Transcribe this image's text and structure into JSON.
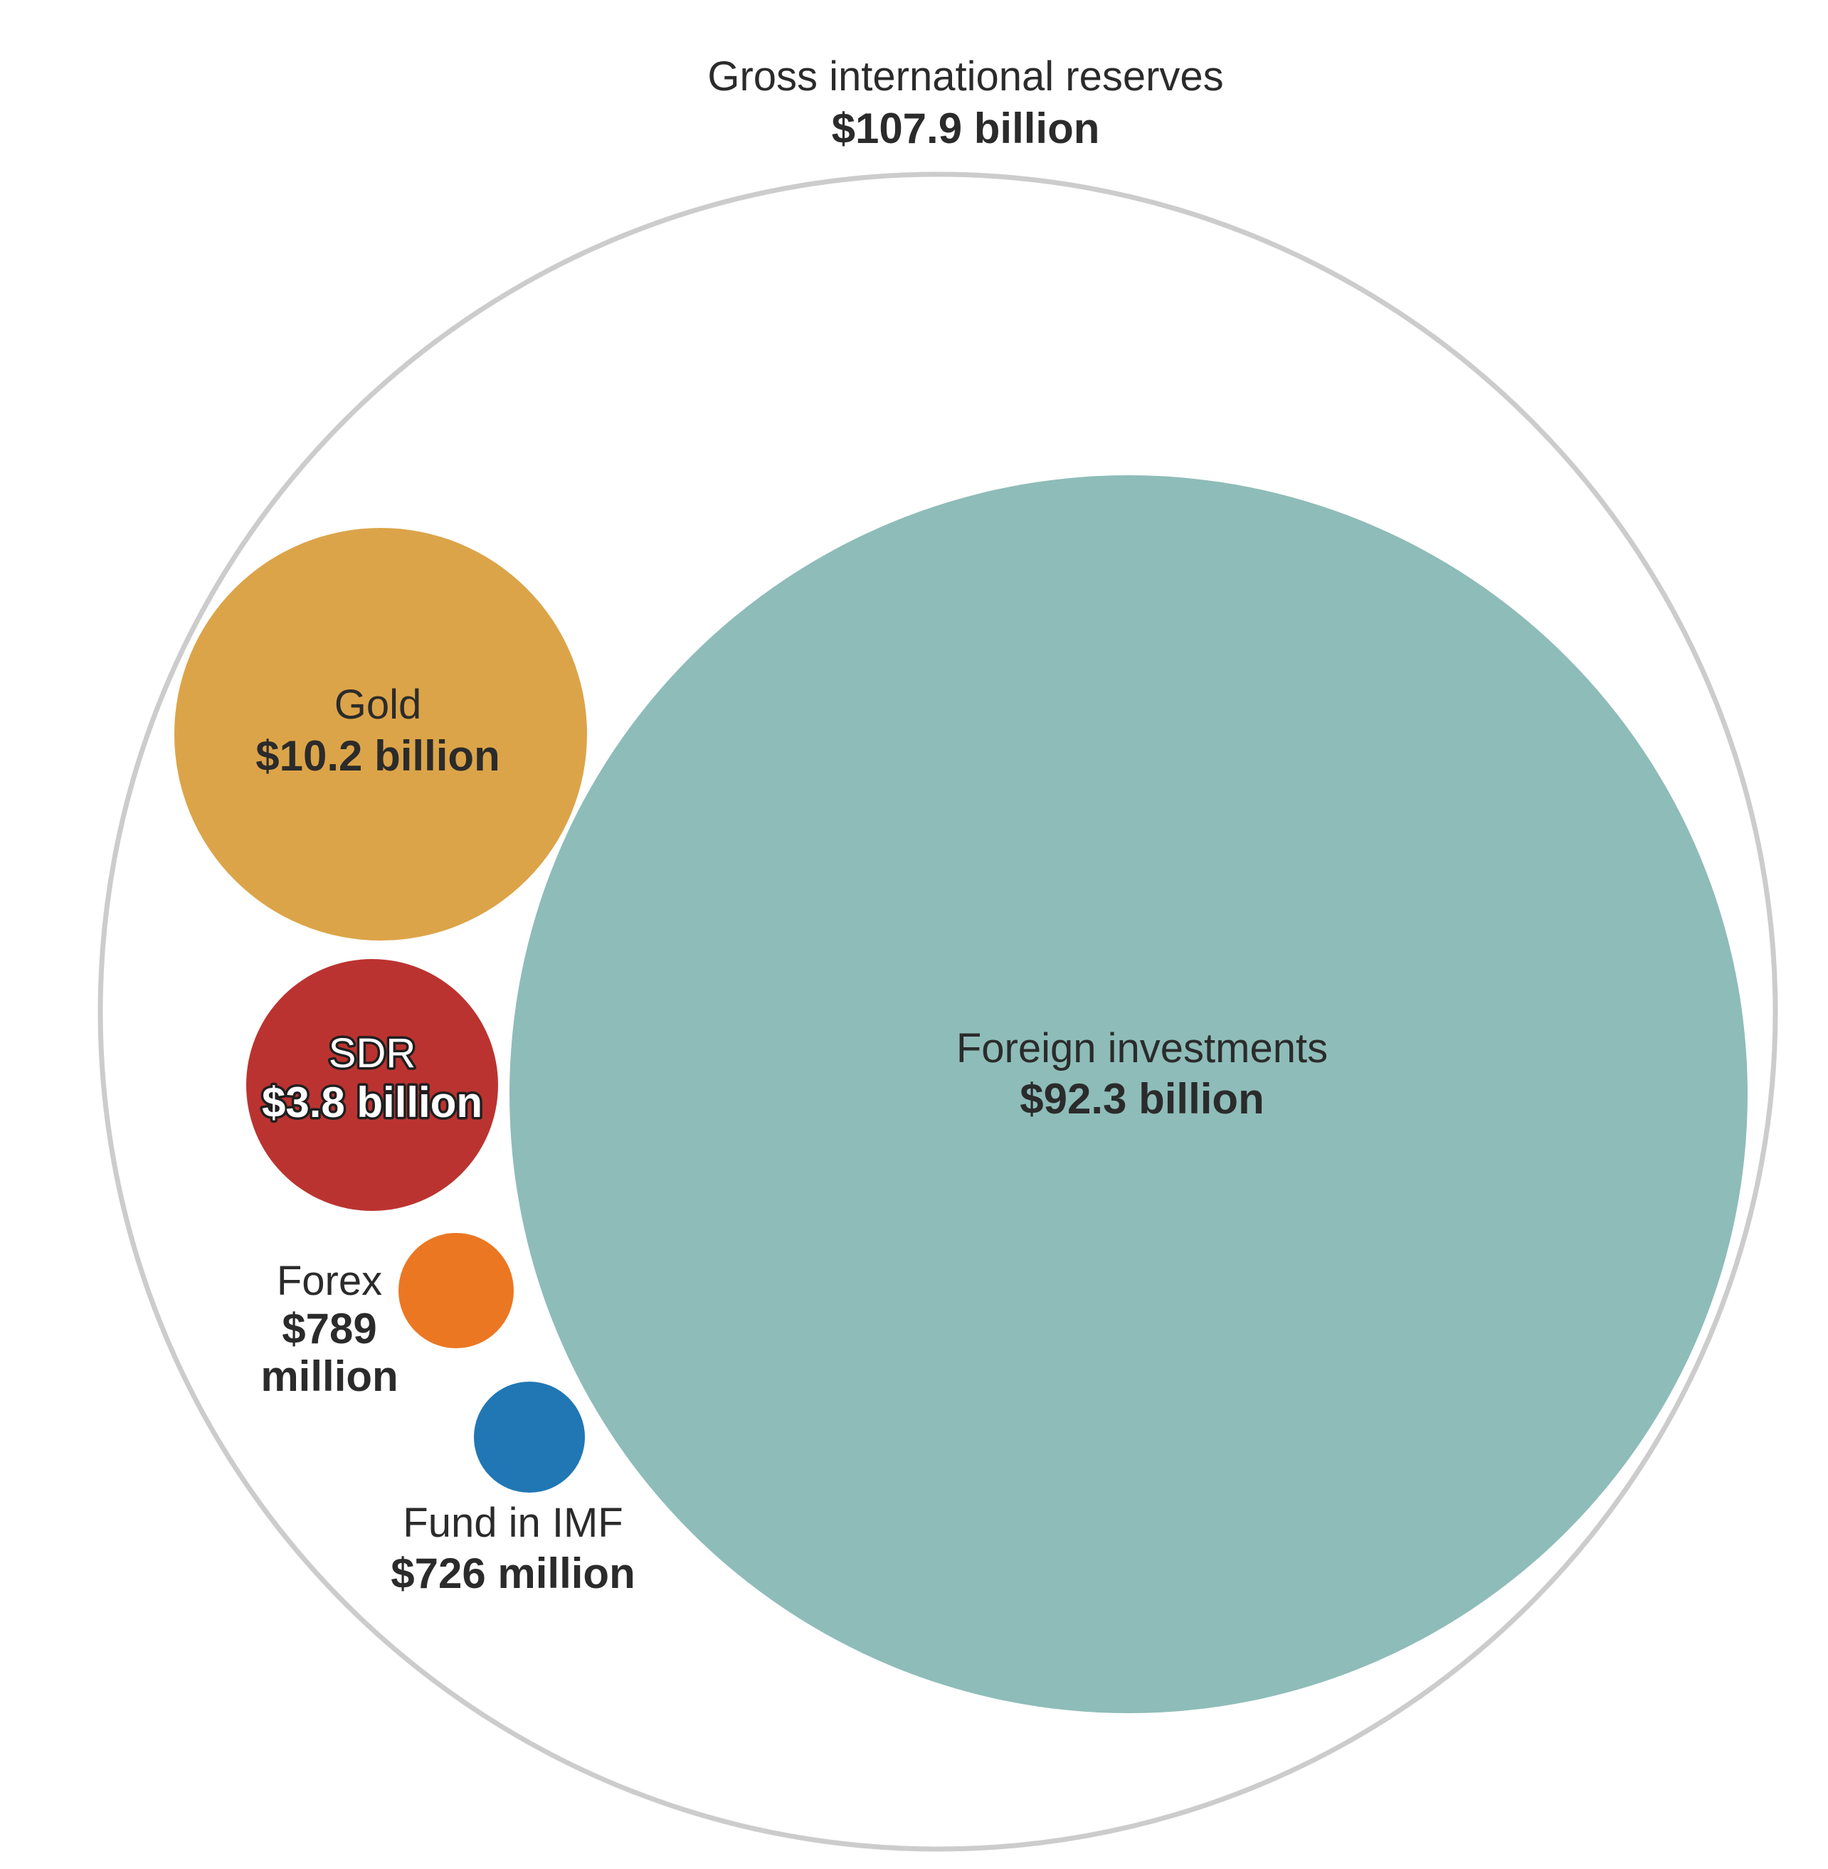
{
  "chart_data": {
    "type": "bubble",
    "total": {
      "label": "Gross international reserves",
      "value_text": "$107.9 billion",
      "value": 107.9,
      "color": "#cccccc"
    },
    "series": [
      {
        "id": "foreign-investments",
        "label": "Foreign investments",
        "value_text": "$92.3 billion",
        "value": 92.3,
        "color": "#8ebcb9"
      },
      {
        "id": "gold",
        "label": "Gold",
        "value_text": "$10.2 billion",
        "value": 10.2,
        "color": "#dca449"
      },
      {
        "id": "sdr",
        "label": "SDR",
        "value_text": "$3.8 billion",
        "value": 3.8,
        "color": "#bb3330"
      },
      {
        "id": "forex",
        "label": "Forex",
        "value_text_lines": [
          "$789",
          "million"
        ],
        "value": 0.789,
        "color": "#eb7722"
      },
      {
        "id": "fund-in-imf",
        "label": "Fund in IMF",
        "value_text": "$726 million",
        "value": 0.726,
        "color": "#2077b4"
      }
    ]
  }
}
